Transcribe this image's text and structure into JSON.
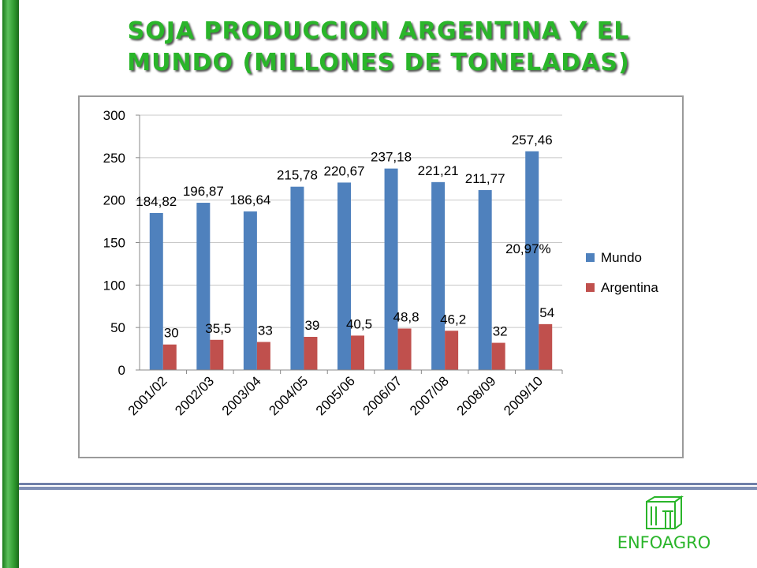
{
  "title_line1": "SOJA PRODUCCION ARGENTINA Y EL",
  "title_line2": "MUNDO (MILLONES DE TONELADAS)",
  "annotation": "20,97%",
  "logo_text": "ENFOAGRO",
  "colors": {
    "mundo": "#4f81bd",
    "argentina": "#c0504d",
    "title": "#2ab52a",
    "accent_bar": "#2e9a2e"
  },
  "chart_data": {
    "type": "bar",
    "categories": [
      "2001/02",
      "2002/03",
      "2003/04",
      "2004/05",
      "2005/06",
      "2006/07",
      "2007/08",
      "2008/09",
      "2009/10"
    ],
    "series": [
      {
        "name": "Mundo",
        "values": [
          184.82,
          196.87,
          186.64,
          215.78,
          220.67,
          237.18,
          221.21,
          211.77,
          257.46
        ],
        "labels": [
          "184,82",
          "196,87",
          "186,64",
          "215,78",
          "220,67",
          "237,18",
          "221,21",
          "211,77",
          "257,46"
        ]
      },
      {
        "name": "Argentina",
        "values": [
          30,
          35.5,
          33,
          39,
          40.5,
          48.8,
          46.2,
          32,
          54
        ],
        "labels": [
          "30",
          "35,5",
          "33",
          "39",
          "40,5",
          "48,8",
          "46,2",
          "32",
          "54"
        ]
      }
    ],
    "yticks": [
      "0",
      "50",
      "100",
      "150",
      "200",
      "250",
      "300"
    ],
    "ylim": [
      0,
      300
    ],
    "grid": true,
    "legend": "right"
  }
}
